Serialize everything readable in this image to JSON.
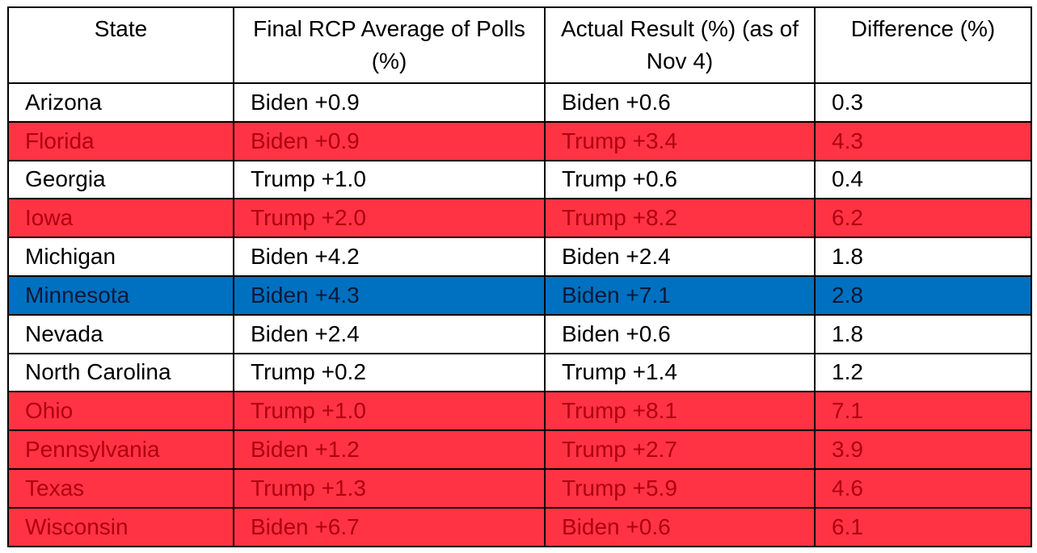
{
  "table": {
    "header": [
      "State",
      "Final RCP Average of Polls (%)",
      "Actual Result (%) (as of Nov 4)",
      "Difference (%)"
    ],
    "rows": [
      [
        "Arizona",
        "Biden +0.9",
        "Biden +0.6",
        "0.3"
      ],
      [
        "Florida",
        "Biden +0.9",
        "Trump +3.4",
        "4.3"
      ],
      [
        "Georgia",
        "Trump +1.0",
        "Trump +0.6",
        "0.4"
      ],
      [
        "Iowa",
        "Trump +2.0",
        "Trump +8.2",
        "6.2"
      ],
      [
        "Michigan",
        "Biden +4.2",
        "Biden +2.4",
        "1.8"
      ],
      [
        "Minnesota",
        "Biden +4.3",
        "Biden +7.1",
        "2.8"
      ],
      [
        "Nevada",
        "Biden +2.4",
        "Biden +0.6",
        "1.8"
      ],
      [
        "North Carolina",
        "Trump +0.2",
        "Trump +1.4",
        "1.2"
      ],
      [
        "Ohio",
        "Trump +1.0",
        "Trump +8.1",
        "7.1"
      ],
      [
        "Pennsylvania",
        "Biden +1.2",
        "Trump +2.7",
        "3.9"
      ],
      [
        "Texas",
        "Trump +1.3",
        "Trump +5.9",
        "4.6"
      ],
      [
        "Wisconsin",
        "Biden +6.7",
        "Biden +0.6",
        "6.1"
      ]
    ],
    "row_fills": [
      null,
      "#ff3344",
      null,
      "#ff3344",
      null,
      "#0070c0",
      null,
      null,
      "#ff3344",
      "#ff3344",
      "#ff3344",
      "#ff3344"
    ],
    "row_text_colors": [
      null,
      "#b00010",
      null,
      "#b00010",
      null,
      "#0a1a3a",
      null,
      null,
      "#b00010",
      "#b00010",
      "#b00010",
      "#b00010"
    ]
  }
}
